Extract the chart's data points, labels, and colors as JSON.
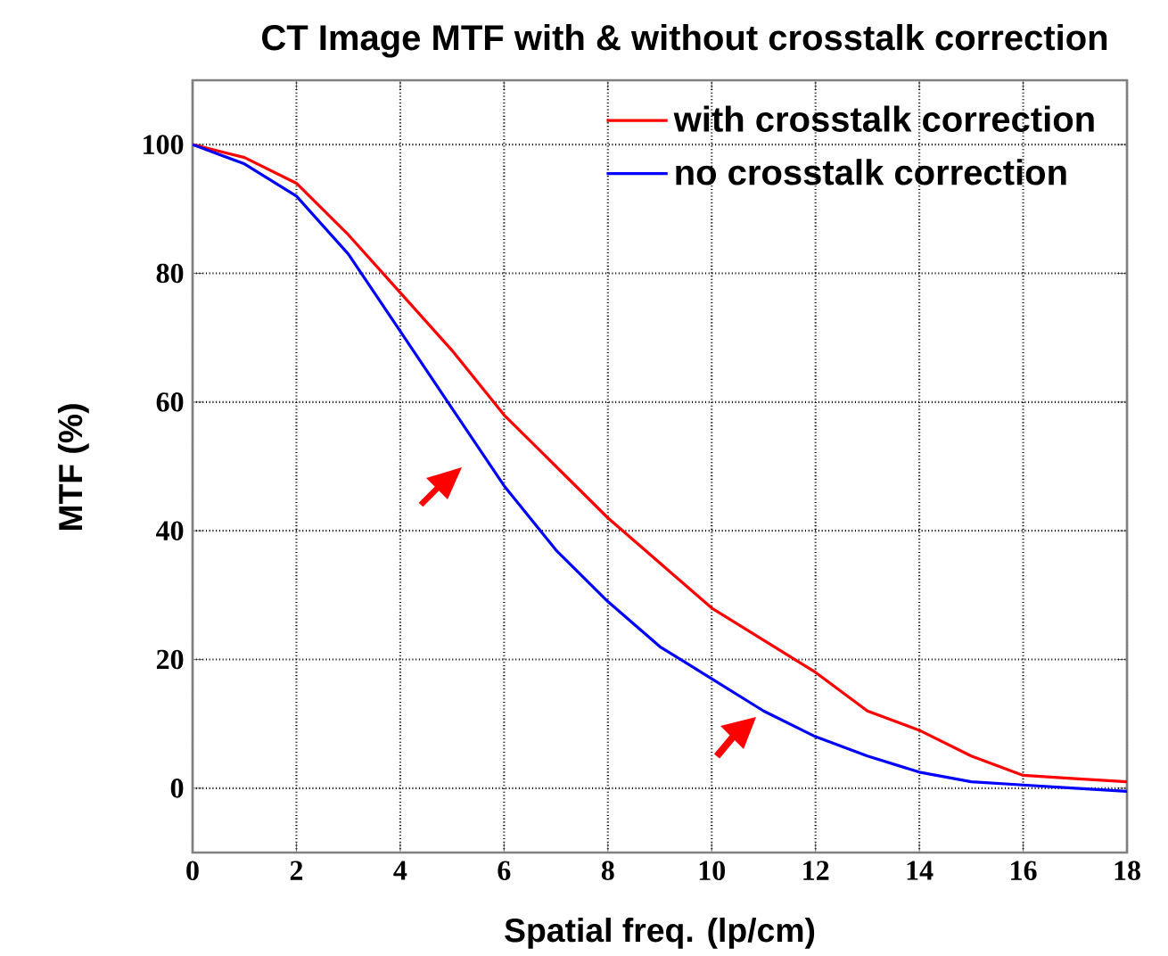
{
  "chart_data": {
    "type": "line",
    "title": "CT Image MTF with & without crosstalk correction",
    "xlabel": "Spatial freq. (lp/cm)",
    "ylabel": "MTF (%)",
    "x": [
      0,
      1,
      2,
      3,
      4,
      5,
      6,
      7,
      8,
      9,
      10,
      11,
      12,
      13,
      14,
      15,
      16,
      17,
      18
    ],
    "series": [
      {
        "name": "with crosstalk correction",
        "color": "#ff0000",
        "values": [
          100,
          98,
          94,
          86,
          77,
          68,
          58,
          50,
          42,
          35,
          28,
          23,
          18,
          12,
          9,
          5,
          2,
          1.5,
          1
        ]
      },
      {
        "name": "no crosstalk correction",
        "color": "#0000ff",
        "values": [
          100,
          97,
          92,
          83,
          71,
          59,
          47,
          37,
          29,
          22,
          17,
          12,
          8,
          5,
          2.5,
          1,
          0.5,
          0,
          -0.5
        ]
      }
    ],
    "xlim": [
      0,
      18
    ],
    "ylim": [
      -10,
      110
    ],
    "xticks": [
      0,
      2,
      4,
      6,
      8,
      10,
      12,
      14,
      16,
      18
    ],
    "yticks": [
      0,
      20,
      40,
      60,
      80,
      100
    ],
    "grid": true,
    "legend": "top right",
    "marker": "none",
    "line_style": "solid"
  }
}
